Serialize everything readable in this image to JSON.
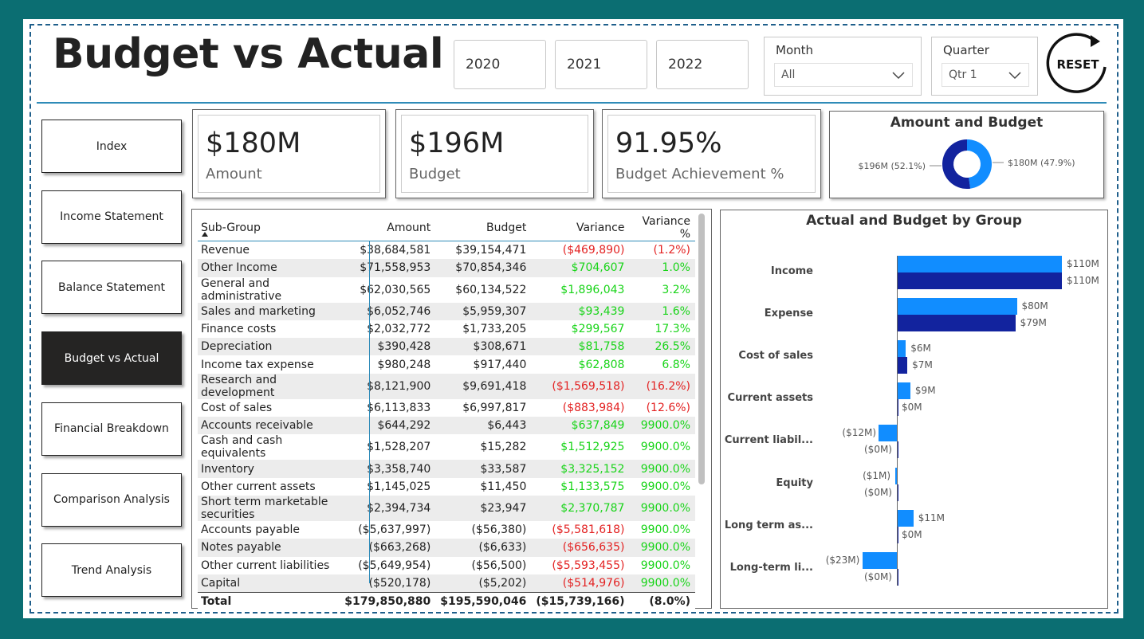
{
  "header": {
    "title": "Budget vs Actual"
  },
  "years": [
    "2020",
    "2021",
    "2022"
  ],
  "month_slicer": {
    "label": "Month",
    "value": "All"
  },
  "quarter_slicer": {
    "label": "Quarter",
    "value": "Qtr 1"
  },
  "reset_label": "RESET",
  "nav": [
    "Index",
    "Income Statement",
    "Balance Statement",
    "Budget vs Actual",
    "Financial Breakdown",
    "Comparison Analysis",
    "Trend Analysis"
  ],
  "active_nav": "Budget vs Actual",
  "kpis": [
    {
      "value": "$180M",
      "label": "Amount"
    },
    {
      "value": "$196M",
      "label": "Budget"
    },
    {
      "value": "91.95%",
      "label": "Budget Achievement %"
    }
  ],
  "colors": {
    "amount": "#118dff",
    "budget": "#12239e",
    "positive": "#18d418",
    "negative": "#e32222",
    "accent": "#0b6e72"
  },
  "donut": {
    "title": "Amount and Budget",
    "left_label": "$196M (52.1%)",
    "right_label": "$180M (47.9%)",
    "chart_data": {
      "type": "pie",
      "slices": [
        {
          "name": "Budget",
          "value": 196,
          "pct": 52.1
        },
        {
          "name": "Amount",
          "value": 180,
          "pct": 47.9
        }
      ]
    }
  },
  "table": {
    "headers": [
      "Sub-Group",
      "Amount",
      "Budget",
      "Variance",
      "Variance %"
    ],
    "rows": [
      [
        "Revenue",
        "$38,684,581",
        "$39,154,471",
        "($469,890)",
        "(1.2%)"
      ],
      [
        "Other Income",
        "$71,558,953",
        "$70,854,346",
        "$704,607",
        "1.0%"
      ],
      [
        "General and administrative",
        "$62,030,565",
        "$60,134,522",
        "$1,896,043",
        "3.2%"
      ],
      [
        "Sales and marketing",
        "$6,052,746",
        "$5,959,307",
        "$93,439",
        "1.6%"
      ],
      [
        "Finance costs",
        "$2,032,772",
        "$1,733,205",
        "$299,567",
        "17.3%"
      ],
      [
        "Depreciation",
        "$390,428",
        "$308,671",
        "$81,758",
        "26.5%"
      ],
      [
        "Income tax expense",
        "$980,248",
        "$917,440",
        "$62,808",
        "6.8%"
      ],
      [
        "Research and development",
        "$8,121,900",
        "$9,691,418",
        "($1,569,518)",
        "(16.2%)"
      ],
      [
        "Cost of sales",
        "$6,113,833",
        "$6,997,817",
        "($883,984)",
        "(12.6%)"
      ],
      [
        "Accounts receivable",
        "$644,292",
        "$6,443",
        "$637,849",
        "9900.0%"
      ],
      [
        "Cash and cash equivalents",
        "$1,528,207",
        "$15,282",
        "$1,512,925",
        "9900.0%"
      ],
      [
        "Inventory",
        "$3,358,740",
        "$33,587",
        "$3,325,152",
        "9900.0%"
      ],
      [
        "Other current assets",
        "$1,145,025",
        "$11,450",
        "$1,133,575",
        "9900.0%"
      ],
      [
        "Short term marketable securities",
        "$2,394,734",
        "$23,947",
        "$2,370,787",
        "9900.0%"
      ],
      [
        "Accounts payable",
        "($5,637,997)",
        "($56,380)",
        "($5,581,618)",
        "9900.0%"
      ],
      [
        "Notes payable",
        "($663,268)",
        "($6,633)",
        "($656,635)",
        "9900.0%"
      ],
      [
        "Other current liabilities",
        "($5,649,954)",
        "($56,500)",
        "($5,593,455)",
        "9900.0%"
      ],
      [
        "Capital",
        "($520,178)",
        "($5,202)",
        "($514,976)",
        "9900.0%"
      ]
    ],
    "total": [
      "Total",
      "$179,850,880",
      "$195,590,046",
      "($15,739,166)",
      "(8.0%)"
    ]
  },
  "bar_chart": {
    "title": "Actual and Budget by Group",
    "chart_data": {
      "type": "bar",
      "orientation": "horizontal",
      "categories": [
        "Income",
        "Expense",
        "Cost of sales",
        "Current assets",
        "Current liabil...",
        "Equity",
        "Long term as...",
        "Long-term li..."
      ],
      "series": [
        {
          "name": "Amount",
          "values": [
            110,
            80,
            6,
            9,
            -12,
            -1,
            11,
            -23
          ],
          "labels": [
            "$110M",
            "$80M",
            "$6M",
            "$9M",
            "($12M)",
            "($1M)",
            "$11M",
            "($23M)"
          ]
        },
        {
          "name": "Budget",
          "values": [
            110,
            79,
            7,
            0,
            0,
            0,
            0,
            0
          ],
          "labels": [
            "$110M",
            "$79M",
            "$7M",
            "$0M",
            "($0M)",
            "($0M)",
            "$0M",
            "($0M)"
          ]
        }
      ]
    }
  }
}
